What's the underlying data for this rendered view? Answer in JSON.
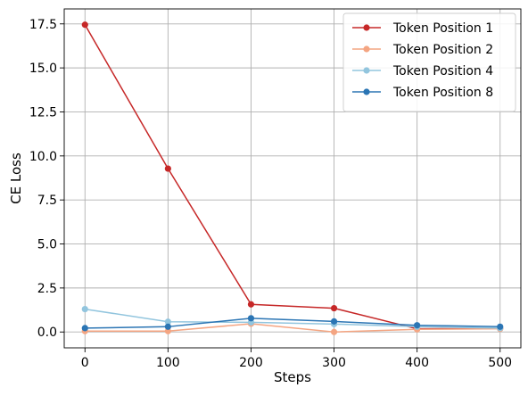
{
  "chart_data": {
    "type": "line",
    "title": "",
    "xlabel": "Steps",
    "ylabel": "CE Loss",
    "xlim": [
      -25,
      525
    ],
    "ylim": [
      -0.9,
      18.35
    ],
    "xticks": [
      0,
      100,
      200,
      300,
      400,
      500
    ],
    "xtick_labels": [
      "0",
      "100",
      "200",
      "300",
      "400",
      "500"
    ],
    "yticks": [
      0,
      2.5,
      5,
      7.5,
      10,
      12.5,
      15,
      17.5
    ],
    "ytick_labels": [
      "0.0",
      "2.5",
      "5.0",
      "7.5",
      "10.0",
      "12.5",
      "15.0",
      "17.5"
    ],
    "grid": true,
    "legend_position": "top-right",
    "x": [
      0,
      100,
      200,
      300,
      400,
      500
    ],
    "series": [
      {
        "name": "Token Position 1",
        "color": "#c62828",
        "values": [
          17.45,
          9.28,
          1.57,
          1.35,
          0.18,
          0.2
        ]
      },
      {
        "name": "Token Position 2",
        "color": "#f4a582",
        "values": [
          0.05,
          0.05,
          0.47,
          0.0,
          0.15,
          0.18
        ]
      },
      {
        "name": "Token Position 4",
        "color": "#92c5de",
        "values": [
          1.3,
          0.58,
          0.55,
          0.45,
          0.3,
          0.22
        ]
      },
      {
        "name": "Token Position 8",
        "color": "#2b75b4",
        "values": [
          0.22,
          0.3,
          0.78,
          0.6,
          0.38,
          0.3
        ]
      }
    ]
  }
}
